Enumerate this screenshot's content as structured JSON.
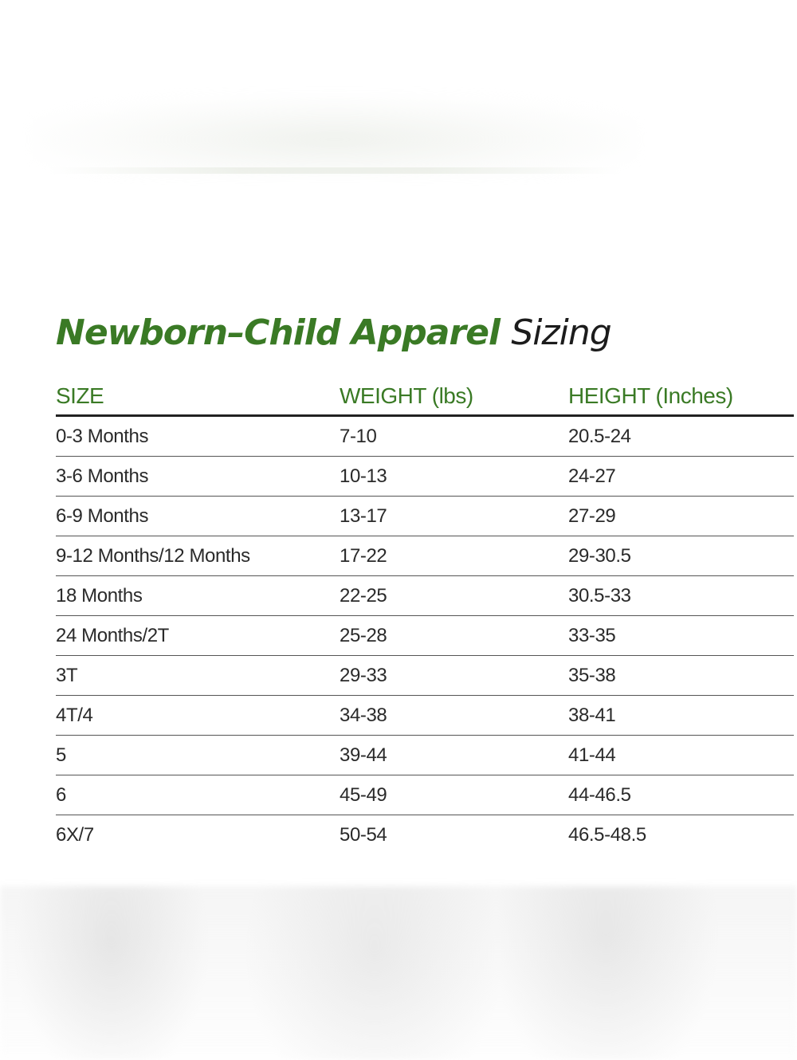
{
  "title": {
    "bold": "Newborn–Child Apparel",
    "light": "Sizing"
  },
  "table": {
    "headers": [
      "SIZE",
      "WEIGHT (lbs)",
      "HEIGHT (Inches)"
    ],
    "rows": [
      [
        "0-3 Months",
        "7-10",
        "20.5-24"
      ],
      [
        "3-6 Months",
        "10-13",
        "24-27"
      ],
      [
        "6-9 Months",
        "13-17",
        "27-29"
      ],
      [
        "9-12 Months/12 Months",
        "17-22",
        "29-30.5"
      ],
      [
        "18 Months",
        "22-25",
        "30.5-33"
      ],
      [
        "24 Months/2T",
        "25-28",
        "33-35"
      ],
      [
        "3T",
        "29-33",
        "35-38"
      ],
      [
        "4T/4",
        "34-38",
        "38-41"
      ],
      [
        "5",
        "39-44",
        "41-44"
      ],
      [
        "6",
        "45-49",
        "44-46.5"
      ],
      [
        "6X/7",
        "50-54",
        "46.5-48.5"
      ]
    ]
  },
  "colors": {
    "accent": "#3a7a25",
    "text": "#2a2a2a",
    "rule": "#222222"
  }
}
